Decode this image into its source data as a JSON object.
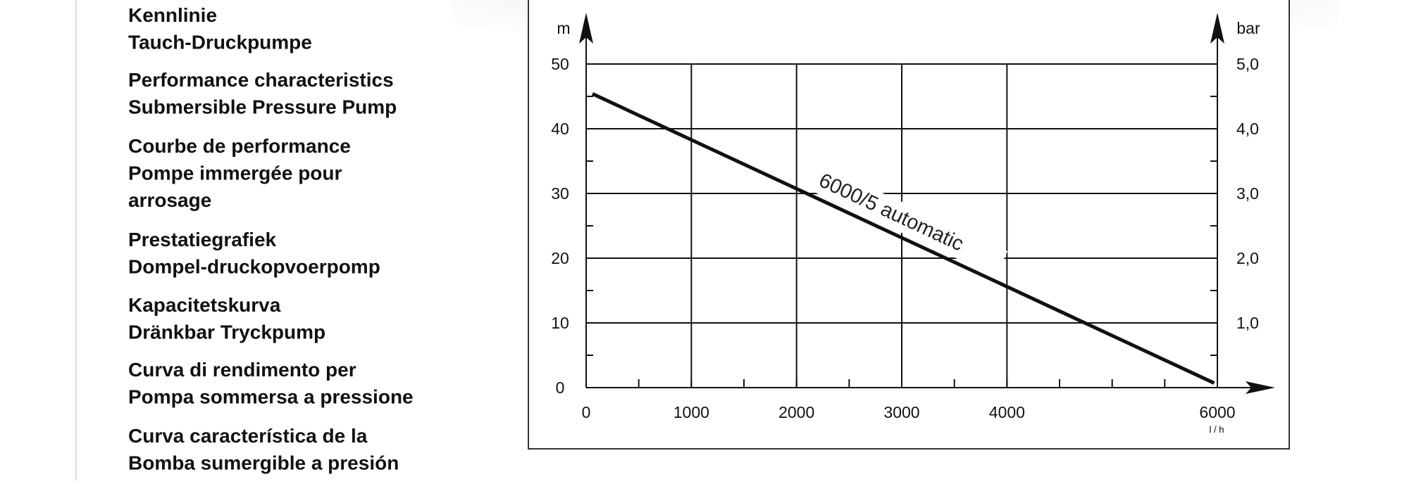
{
  "descriptions": [
    [
      "Kennlinie",
      "Tauch-Druckpumpe"
    ],
    [
      "Performance characteristics",
      "Submersible Pressure Pump"
    ],
    [
      "Courbe de performance",
      "Pompe immergée pour",
      "arrosage"
    ],
    [
      "Prestatiegrafiek",
      "Dompel-druckopvoerpomp"
    ],
    [
      "Kapacitetskurva",
      "Dränkbar Tryckpump"
    ],
    [
      "Curva di rendimento per",
      "Pompa sommersa a pressione"
    ],
    [
      "Curva característica de la",
      "Bomba sumergible a presión"
    ]
  ],
  "chart_data": {
    "type": "line",
    "x_label": "l / h",
    "y_label": "m",
    "y2_label": "bar",
    "xlim": [
      0,
      6000
    ],
    "xticks": [
      0,
      1000,
      2000,
      3000,
      4000,
      6000
    ],
    "ylim": [
      0,
      50
    ],
    "yticks": [
      0,
      10,
      20,
      30,
      40,
      50
    ],
    "y2lim": [
      0,
      5
    ],
    "y2ticks": [
      {
        "value": 1,
        "label": "1,0"
      },
      {
        "value": 2,
        "label": "2,0"
      },
      {
        "value": 3,
        "label": "3,0"
      },
      {
        "value": 4,
        "label": "4,0"
      },
      {
        "value": 5,
        "label": "5,0"
      }
    ],
    "grid": true,
    "series": [
      {
        "name": "6000/5 automatic",
        "color": "#111111",
        "x": [
          60,
          5970
        ],
        "values": [
          45.4,
          0.7
        ]
      }
    ]
  }
}
